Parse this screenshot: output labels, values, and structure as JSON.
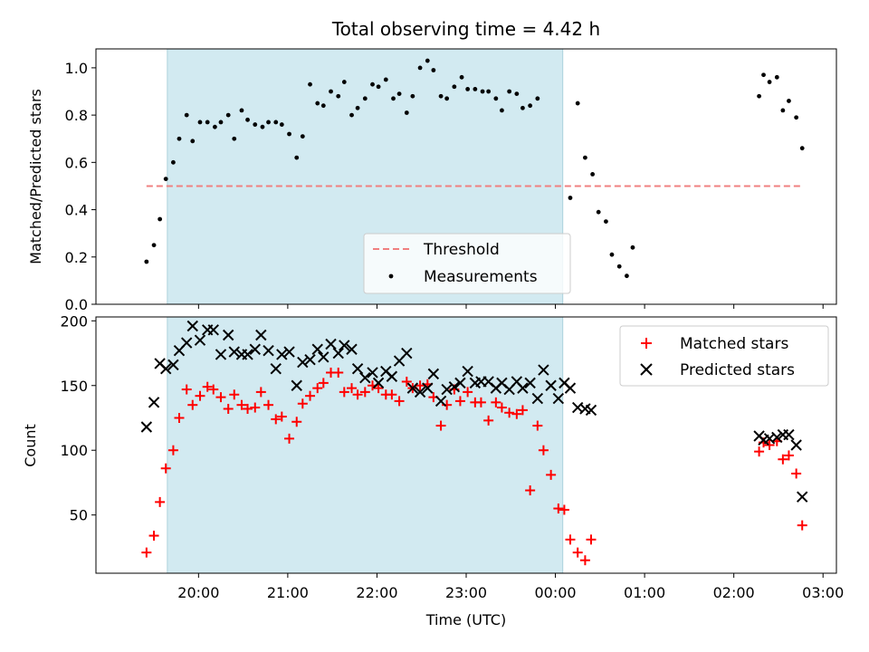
{
  "chart_data": [
    {
      "type": "scatter",
      "title": "Total observing time = 4.42 h",
      "xlabel": "",
      "ylabel": "Matched/Predicted stars",
      "ylim": [
        0.0,
        1.08
      ],
      "yticks": [
        "0.0",
        "0.2",
        "0.4",
        "0.6",
        "0.8",
        "1.0"
      ],
      "grid": false,
      "legend_position": "bottom-center",
      "shaded_interval": [
        "19:39",
        "00:05"
      ],
      "threshold": {
        "name": "Threshold",
        "value": 0.5,
        "x_range": [
          "19:25",
          "02:46"
        ],
        "color": "#f08080",
        "style": "dashed"
      },
      "series": [
        {
          "name": "Measurements",
          "marker": "dot",
          "color": "#000000",
          "points": [
            [
              "19:25",
              0.18
            ],
            [
              "19:30",
              0.25
            ],
            [
              "19:34",
              0.36
            ],
            [
              "19:38",
              0.53
            ],
            [
              "19:43",
              0.6
            ],
            [
              "19:47",
              0.7
            ],
            [
              "19:52",
              0.8
            ],
            [
              "19:56",
              0.69
            ],
            [
              "20:01",
              0.77
            ],
            [
              "20:06",
              0.77
            ],
            [
              "20:11",
              0.75
            ],
            [
              "20:15",
              0.77
            ],
            [
              "20:20",
              0.8
            ],
            [
              "20:24",
              0.7
            ],
            [
              "20:29",
              0.82
            ],
            [
              "20:33",
              0.78
            ],
            [
              "20:38",
              0.76
            ],
            [
              "20:43",
              0.75
            ],
            [
              "20:47",
              0.77
            ],
            [
              "20:52",
              0.77
            ],
            [
              "20:56",
              0.76
            ],
            [
              "21:01",
              0.72
            ],
            [
              "21:06",
              0.62
            ],
            [
              "21:10",
              0.71
            ],
            [
              "21:15",
              0.93
            ],
            [
              "21:20",
              0.85
            ],
            [
              "21:24",
              0.84
            ],
            [
              "21:29",
              0.9
            ],
            [
              "21:34",
              0.88
            ],
            [
              "21:38",
              0.94
            ],
            [
              "21:43",
              0.8
            ],
            [
              "21:47",
              0.83
            ],
            [
              "21:52",
              0.87
            ],
            [
              "21:57",
              0.93
            ],
            [
              "22:01",
              0.92
            ],
            [
              "22:06",
              0.95
            ],
            [
              "22:11",
              0.87
            ],
            [
              "22:15",
              0.89
            ],
            [
              "22:20",
              0.81
            ],
            [
              "22:24",
              0.88
            ],
            [
              "22:29",
              1.0
            ],
            [
              "22:34",
              1.03
            ],
            [
              "22:38",
              0.99
            ],
            [
              "22:43",
              0.88
            ],
            [
              "22:47",
              0.87
            ],
            [
              "22:52",
              0.92
            ],
            [
              "22:57",
              0.96
            ],
            [
              "23:01",
              0.91
            ],
            [
              "23:06",
              0.91
            ],
            [
              "23:11",
              0.9
            ],
            [
              "23:15",
              0.9
            ],
            [
              "23:20",
              0.87
            ],
            [
              "23:24",
              0.82
            ],
            [
              "23:29",
              0.9
            ],
            [
              "23:34",
              0.89
            ],
            [
              "23:38",
              0.83
            ],
            [
              "23:43",
              0.84
            ],
            [
              "23:48",
              0.87
            ],
            [
              "00:10",
              0.45
            ],
            [
              "00:15",
              0.85
            ],
            [
              "00:20",
              0.62
            ],
            [
              "00:25",
              0.55
            ],
            [
              "00:29",
              0.39
            ],
            [
              "00:34",
              0.35
            ],
            [
              "00:38",
              0.21
            ],
            [
              "00:43",
              0.16
            ],
            [
              "00:48",
              0.12
            ],
            [
              "00:52",
              0.24
            ],
            [
              "02:17",
              0.88
            ],
            [
              "02:20",
              0.97
            ],
            [
              "02:24",
              0.94
            ],
            [
              "02:29",
              0.96
            ],
            [
              "02:33",
              0.82
            ],
            [
              "02:37",
              0.86
            ],
            [
              "02:42",
              0.79
            ],
            [
              "02:46",
              0.66
            ]
          ]
        }
      ]
    },
    {
      "type": "scatter",
      "title": "",
      "xlabel": "Time (UTC)",
      "ylabel": "Count",
      "ylim": [
        5,
        203
      ],
      "yticks": [
        "50",
        "100",
        "150",
        "200"
      ],
      "xticks": [
        "20:00",
        "21:00",
        "22:00",
        "23:00",
        "00:00",
        "01:00",
        "02:00",
        "03:00"
      ],
      "grid": false,
      "legend_position": "top-right",
      "shaded_interval": [
        "19:39",
        "00:05"
      ],
      "series": [
        {
          "name": "Matched stars",
          "marker": "plus",
          "color": "#ff0000",
          "points": [
            [
              "19:25",
              21
            ],
            [
              "19:30",
              34
            ],
            [
              "19:34",
              60
            ],
            [
              "19:38",
              86
            ],
            [
              "19:43",
              100
            ],
            [
              "19:47",
              125
            ],
            [
              "19:52",
              147
            ],
            [
              "19:56",
              135
            ],
            [
              "20:01",
              142
            ],
            [
              "20:06",
              149
            ],
            [
              "20:10",
              147
            ],
            [
              "20:15",
              141
            ],
            [
              "20:20",
              132
            ],
            [
              "20:24",
              143
            ],
            [
              "20:29",
              135
            ],
            [
              "20:33",
              132
            ],
            [
              "20:38",
              133
            ],
            [
              "20:42",
              145
            ],
            [
              "20:47",
              135
            ],
            [
              "20:52",
              124
            ],
            [
              "20:56",
              126
            ],
            [
              "21:01",
              109
            ],
            [
              "21:06",
              122
            ],
            [
              "21:10",
              136
            ],
            [
              "21:15",
              142
            ],
            [
              "21:20",
              148
            ],
            [
              "21:24",
              152
            ],
            [
              "21:29",
              160
            ],
            [
              "21:34",
              160
            ],
            [
              "21:38",
              145
            ],
            [
              "21:43",
              148
            ],
            [
              "21:47",
              143
            ],
            [
              "21:52",
              145
            ],
            [
              "21:57",
              150
            ],
            [
              "22:01",
              148
            ],
            [
              "22:06",
              143
            ],
            [
              "22:10",
              143
            ],
            [
              "22:15",
              138
            ],
            [
              "22:20",
              153
            ],
            [
              "22:24",
              148
            ],
            [
              "22:29",
              150
            ],
            [
              "22:34",
              151
            ],
            [
              "22:38",
              141
            ],
            [
              "22:43",
              119
            ],
            [
              "22:47",
              135
            ],
            [
              "22:52",
              147
            ],
            [
              "22:56",
              138
            ],
            [
              "23:01",
              145
            ],
            [
              "23:06",
              137
            ],
            [
              "23:10",
              137
            ],
            [
              "23:15",
              123
            ],
            [
              "23:20",
              137
            ],
            [
              "23:24",
              133
            ],
            [
              "23:29",
              129
            ],
            [
              "23:34",
              128
            ],
            [
              "23:38",
              131
            ],
            [
              "23:43",
              69
            ],
            [
              "23:48",
              119
            ],
            [
              "23:52",
              100
            ],
            [
              "23:57",
              81
            ],
            [
              "00:02",
              55
            ],
            [
              "00:06",
              54
            ],
            [
              "00:10",
              31
            ],
            [
              "00:15",
              21
            ],
            [
              "00:20",
              15
            ],
            [
              "00:24",
              31
            ],
            [
              "02:17",
              99
            ],
            [
              "02:20",
              106
            ],
            [
              "02:24",
              104
            ],
            [
              "02:29",
              107
            ],
            [
              "02:33",
              93
            ],
            [
              "02:37",
              96
            ],
            [
              "02:42",
              82
            ],
            [
              "02:46",
              42
            ]
          ]
        },
        {
          "name": "Predicted stars",
          "marker": "x",
          "color": "#000000",
          "points": [
            [
              "19:25",
              118
            ],
            [
              "19:30",
              137
            ],
            [
              "19:34",
              167
            ],
            [
              "19:38",
              163
            ],
            [
              "19:43",
              166
            ],
            [
              "19:47",
              177
            ],
            [
              "19:52",
              183
            ],
            [
              "19:56",
              196
            ],
            [
              "20:01",
              185
            ],
            [
              "20:06",
              193
            ],
            [
              "20:10",
              193
            ],
            [
              "20:15",
              174
            ],
            [
              "20:20",
              189
            ],
            [
              "20:24",
              176
            ],
            [
              "20:29",
              174
            ],
            [
              "20:33",
              174
            ],
            [
              "20:38",
              178
            ],
            [
              "20:42",
              189
            ],
            [
              "20:47",
              177
            ],
            [
              "20:52",
              163
            ],
            [
              "20:56",
              174
            ],
            [
              "21:01",
              176
            ],
            [
              "21:06",
              150
            ],
            [
              "21:10",
              168
            ],
            [
              "21:15",
              170
            ],
            [
              "21:20",
              178
            ],
            [
              "21:24",
              172
            ],
            [
              "21:29",
              182
            ],
            [
              "21:34",
              175
            ],
            [
              "21:38",
              181
            ],
            [
              "21:43",
              178
            ],
            [
              "21:47",
              163
            ],
            [
              "21:52",
              156
            ],
            [
              "21:57",
              160
            ],
            [
              "22:01",
              152
            ],
            [
              "22:06",
              161
            ],
            [
              "22:10",
              157
            ],
            [
              "22:15",
              169
            ],
            [
              "22:20",
              175
            ],
            [
              "22:24",
              148
            ],
            [
              "22:29",
              145
            ],
            [
              "22:34",
              148
            ],
            [
              "22:38",
              159
            ],
            [
              "22:43",
              138
            ],
            [
              "22:47",
              147
            ],
            [
              "22:52",
              149
            ],
            [
              "22:56",
              152
            ],
            [
              "23:01",
              161
            ],
            [
              "23:06",
              152
            ],
            [
              "23:10",
              153
            ],
            [
              "23:15",
              153
            ],
            [
              "23:20",
              148
            ],
            [
              "23:24",
              152
            ],
            [
              "23:29",
              147
            ],
            [
              "23:34",
              153
            ],
            [
              "23:38",
              148
            ],
            [
              "23:43",
              152
            ],
            [
              "23:48",
              140
            ],
            [
              "23:52",
              162
            ],
            [
              "23:57",
              150
            ],
            [
              "00:02",
              140
            ],
            [
              "00:06",
              152
            ],
            [
              "00:10",
              148
            ],
            [
              "00:15",
              133
            ],
            [
              "00:20",
              132
            ],
            [
              "00:24",
              131
            ],
            [
              "02:17",
              111
            ],
            [
              "02:20",
              108
            ],
            [
              "02:24",
              109
            ],
            [
              "02:29",
              110
            ],
            [
              "02:33",
              112
            ],
            [
              "02:37",
              112
            ],
            [
              "02:42",
              104
            ],
            [
              "02:46",
              64
            ]
          ]
        }
      ]
    }
  ]
}
